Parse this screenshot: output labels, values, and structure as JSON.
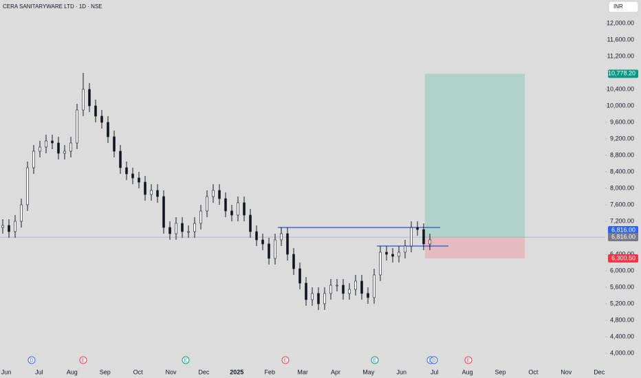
{
  "header": {
    "title": "CERA SANITARYWARE LTD · 1D · NSE",
    "currency": "INR"
  },
  "chart_data": {
    "type": "candlestick",
    "ohlc": [
      [
        7050,
        7250,
        6900,
        7100
      ],
      [
        7100,
        7250,
        6800,
        6950
      ],
      [
        6950,
        7350,
        6800,
        7200
      ],
      [
        7200,
        7750,
        7050,
        7600
      ],
      [
        7600,
        8650,
        7450,
        8500
      ],
      [
        8500,
        9050,
        8350,
        8900
      ],
      [
        8900,
        9150,
        8750,
        9000
      ],
      [
        9000,
        9300,
        8850,
        9150
      ],
      [
        9150,
        9300,
        8950,
        9100
      ],
      [
        9100,
        9250,
        8700,
        8850
      ],
      [
        8850,
        9050,
        8700,
        8900
      ],
      [
        8900,
        9250,
        8750,
        9100
      ],
      [
        9100,
        10050,
        8950,
        9900
      ],
      [
        9900,
        10800,
        9750,
        10400
      ],
      [
        10400,
        10550,
        9850,
        10000
      ],
      [
        10000,
        10150,
        9600,
        9750
      ],
      [
        9750,
        9900,
        9450,
        9600
      ],
      [
        9600,
        9750,
        9100,
        9250
      ],
      [
        9250,
        9400,
        8750,
        8900
      ],
      [
        8900,
        9050,
        8350,
        8500
      ],
      [
        8500,
        8650,
        8200,
        8350
      ],
      [
        8350,
        8500,
        8100,
        8250
      ],
      [
        8250,
        8400,
        8000,
        8150
      ],
      [
        8150,
        8300,
        7700,
        7850
      ],
      [
        7850,
        8100,
        7700,
        7950
      ],
      [
        7950,
        8100,
        7650,
        7800
      ],
      [
        7800,
        7950,
        6900,
        7050
      ],
      [
        7050,
        7200,
        6750,
        6900
      ],
      [
        6900,
        7300,
        6750,
        7150
      ],
      [
        7150,
        7300,
        6800,
        6950
      ],
      [
        6950,
        7100,
        6800,
        6950
      ],
      [
        6950,
        7300,
        6800,
        7150
      ],
      [
        7150,
        7600,
        7000,
        7450
      ],
      [
        7450,
        7950,
        7300,
        7800
      ],
      [
        7800,
        8100,
        7650,
        7950
      ],
      [
        7950,
        8100,
        7600,
        7750
      ],
      [
        7750,
        7900,
        7300,
        7450
      ],
      [
        7450,
        7600,
        7200,
        7350
      ],
      [
        7350,
        7800,
        7200,
        7650
      ],
      [
        7650,
        7800,
        7200,
        7350
      ],
      [
        7350,
        7500,
        6800,
        6950
      ],
      [
        6950,
        7100,
        6600,
        6750
      ],
      [
        6750,
        6900,
        6500,
        6650
      ],
      [
        6650,
        6800,
        6150,
        6300
      ],
      [
        6300,
        6900,
        6150,
        6750
      ],
      [
        6750,
        7050,
        6600,
        6900
      ],
      [
        6900,
        7050,
        6250,
        6400
      ],
      [
        6400,
        6550,
        5900,
        6050
      ],
      [
        6050,
        6200,
        5550,
        5700
      ],
      [
        5700,
        5850,
        5150,
        5300
      ],
      [
        5300,
        5600,
        5150,
        5450
      ],
      [
        5450,
        5600,
        5050,
        5200
      ],
      [
        5200,
        5600,
        5050,
        5450
      ],
      [
        5450,
        5800,
        5300,
        5650
      ],
      [
        5650,
        5800,
        5500,
        5650
      ],
      [
        5650,
        5800,
        5300,
        5450
      ],
      [
        5450,
        5700,
        5300,
        5550
      ],
      [
        5550,
        5900,
        5400,
        5750
      ],
      [
        5750,
        5900,
        5300,
        5450
      ],
      [
        5450,
        5600,
        5200,
        5350
      ],
      [
        5350,
        6050,
        5200,
        5900
      ],
      [
        5900,
        6600,
        5750,
        6450
      ],
      [
        6450,
        6600,
        6250,
        6400
      ],
      [
        6400,
        6550,
        6200,
        6350
      ],
      [
        6350,
        6600,
        6200,
        6450
      ],
      [
        6450,
        6750,
        6300,
        6600
      ],
      [
        6600,
        7200,
        6450,
        7050
      ],
      [
        7050,
        7200,
        6850,
        7000
      ],
      [
        7000,
        7150,
        6500,
        6650
      ],
      [
        6650,
        6900,
        6500,
        6750
      ]
    ],
    "color": "#131722",
    "categories": [
      "Jun",
      "Jul",
      "Aug",
      "Sep",
      "Oct",
      "Nov",
      "Dec",
      "2025",
      "Feb",
      "Mar",
      "Apr",
      "May",
      "Jun",
      "Jul",
      "Aug",
      "Sep",
      "Oct",
      "Nov",
      "Dec"
    ],
    "ylim": [
      3733,
      12567
    ],
    "yticks": [
      {
        "value": 12000,
        "label": "12,000.00"
      },
      {
        "value": 11600,
        "label": "11,600.00"
      },
      {
        "value": 11200,
        "label": "11,200.00"
      },
      {
        "value": 10400,
        "label": "10,400.00"
      },
      {
        "value": 10000,
        "label": "10,000.00"
      },
      {
        "value": 9600,
        "label": "9,600.00"
      },
      {
        "value": 9200,
        "label": "9,200.00"
      },
      {
        "value": 8800,
        "label": "8,800.00"
      },
      {
        "value": 8400,
        "label": "8,400.00"
      },
      {
        "value": 8000,
        "label": "8,000.00"
      },
      {
        "value": 7600,
        "label": "7,600.00"
      },
      {
        "value": 7200,
        "label": "7,200.00"
      },
      {
        "value": 6400,
        "label": "6,400.00"
      },
      {
        "value": 6000,
        "label": "6,000.00"
      },
      {
        "value": 5600,
        "label": "5,600.00"
      },
      {
        "value": 5200,
        "label": "5,200.00"
      },
      {
        "value": 4800,
        "label": "4,800.00"
      },
      {
        "value": 4400,
        "label": "4,400.00"
      },
      {
        "value": 4000,
        "label": "4,000.00"
      }
    ],
    "hlines": [
      7050,
      6600
    ],
    "position": {
      "target": {
        "value": 10778.2,
        "label": "10,778.20"
      },
      "entry": {
        "value": 6816,
        "label": "6,816.00"
      },
      "stop": {
        "value": 6300.5,
        "label": "6,300.50"
      }
    },
    "last_price": {
      "value": 6816,
      "label": "6,816.00"
    },
    "events": [
      "D",
      "E",
      "E",
      "E",
      "E",
      "D",
      "D",
      "E"
    ]
  }
}
